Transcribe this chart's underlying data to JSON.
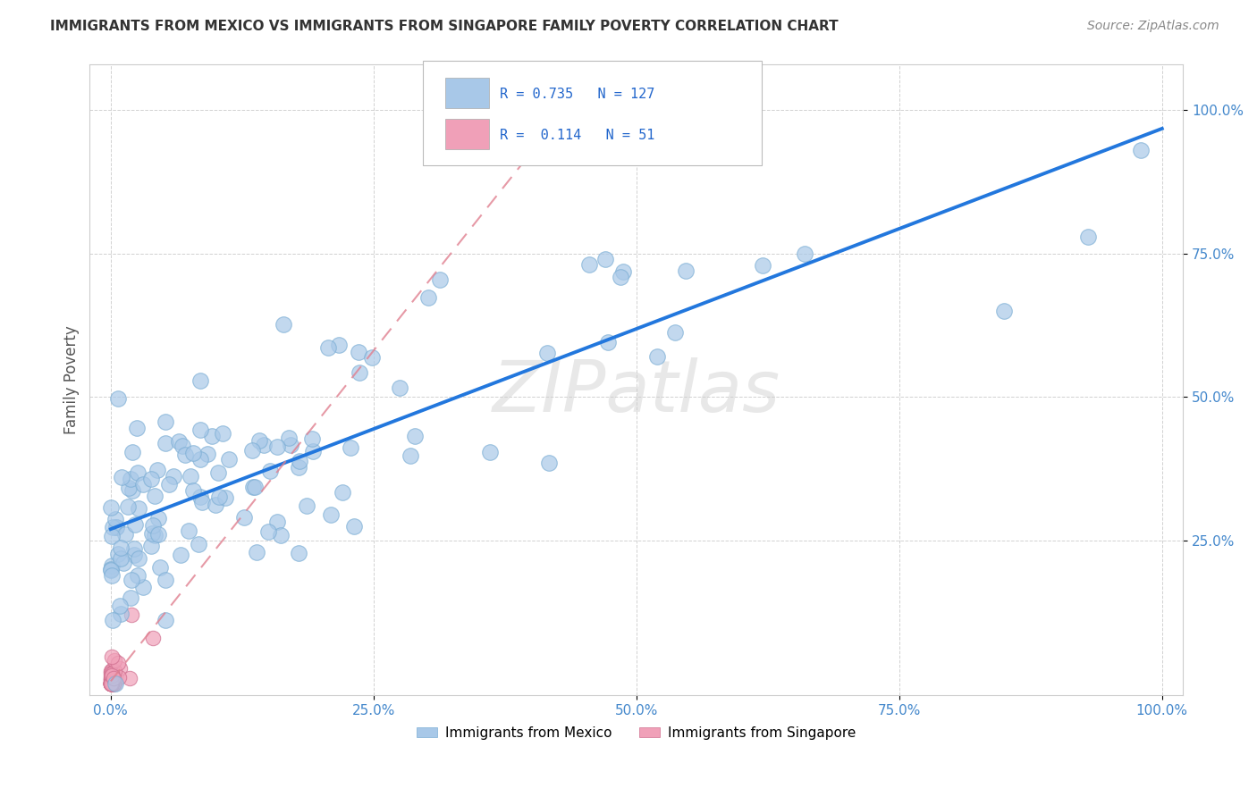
{
  "title": "IMMIGRANTS FROM MEXICO VS IMMIGRANTS FROM SINGAPORE FAMILY POVERTY CORRELATION CHART",
  "source": "Source: ZipAtlas.com",
  "ylabel_label": "Family Poverty",
  "legend_mexico": "Immigrants from Mexico",
  "legend_singapore": "Immigrants from Singapore",
  "R_mexico": 0.735,
  "N_mexico": 127,
  "R_singapore": 0.114,
  "N_singapore": 51,
  "mexico_color": "#a8c8e8",
  "mexico_edge_color": "#7aadd4",
  "mexico_line_color": "#2277dd",
  "singapore_color": "#f0a0b8",
  "singapore_edge_color": "#d07090",
  "singapore_line_color": "#e08090",
  "background_color": "#ffffff",
  "watermark": "ZIPatlas",
  "xlim": [
    -0.02,
    1.02
  ],
  "ylim": [
    -0.02,
    1.08
  ],
  "xticks": [
    0.0,
    0.25,
    0.5,
    0.75,
    1.0
  ],
  "yticks": [
    0.25,
    0.5,
    0.75,
    1.0
  ],
  "xticklabels": [
    "0.0%",
    "25.0%",
    "50.0%",
    "75.0%",
    "100.0%"
  ],
  "yticklabels": [
    "25.0%",
    "50.0%",
    "75.0%",
    "100.0%"
  ],
  "tick_color": "#4488cc",
  "grid_color": "#cccccc",
  "title_fontsize": 11,
  "source_fontsize": 10,
  "tick_fontsize": 11
}
